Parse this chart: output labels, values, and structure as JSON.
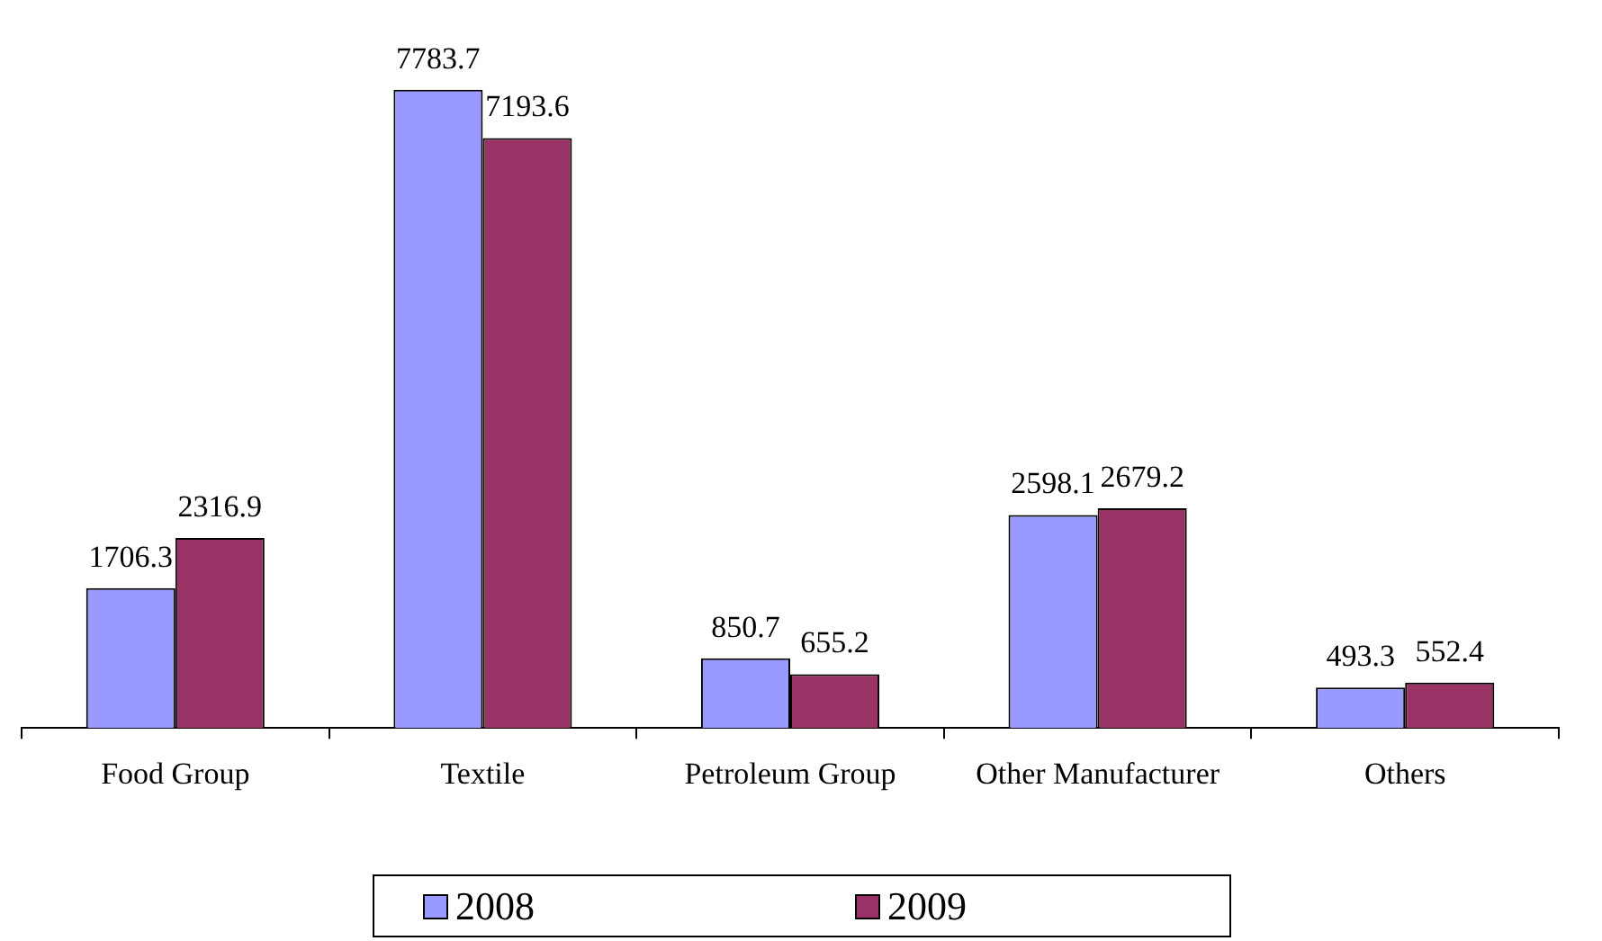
{
  "chart_data": {
    "type": "bar",
    "categories": [
      "Food Group",
      "Textile",
      "Petroleum Group",
      "Other Manufacturer",
      "Others"
    ],
    "series": [
      {
        "name": "2008",
        "color": "#9999ff",
        "values": [
          1706.3,
          7783.7,
          850.7,
          2598.1,
          493.3
        ]
      },
      {
        "name": "2009",
        "color": "#993366",
        "values": [
          2316.9,
          7193.6,
          655.2,
          2679.2,
          552.4
        ]
      }
    ],
    "data_labels": true,
    "legend": "bottom",
    "grid": false
  }
}
